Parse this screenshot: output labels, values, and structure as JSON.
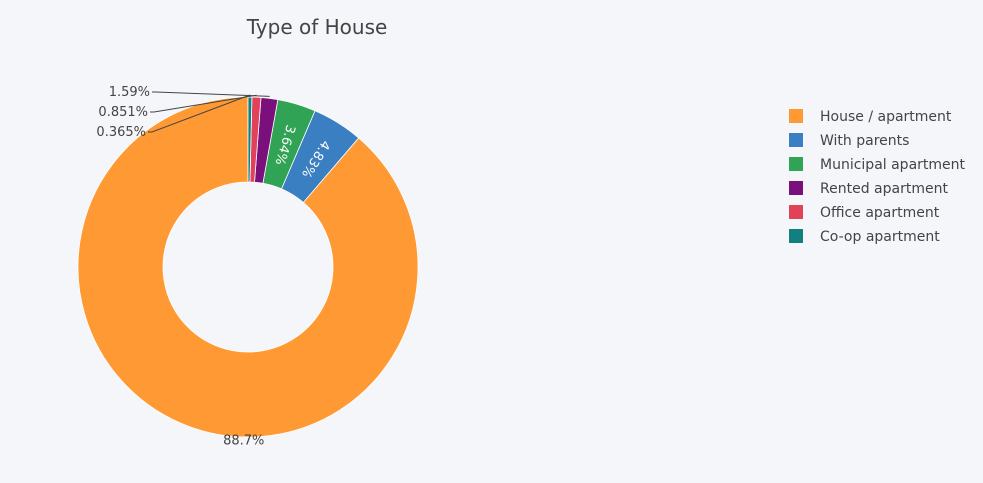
{
  "chart_data": {
    "type": "pie",
    "hole": 0.5,
    "title": "Type of House",
    "labels": [
      "House / apartment",
      "With parents",
      "Municipal apartment",
      "Rented apartment",
      "Office apartment",
      "Co-op apartment"
    ],
    "values": [
      88.7,
      4.83,
      3.64,
      1.59,
      0.851,
      0.365
    ],
    "value_labels": [
      "88.7%",
      "4.83%",
      "3.64%",
      "1.59%",
      "0.851%",
      "0.365%"
    ],
    "colors": [
      "#ff9933",
      "#3a7fc1",
      "#31a354",
      "#7b0f7b",
      "#e0425a",
      "#13807f"
    ],
    "direction": "counterclockwise",
    "legend_position": "right"
  }
}
